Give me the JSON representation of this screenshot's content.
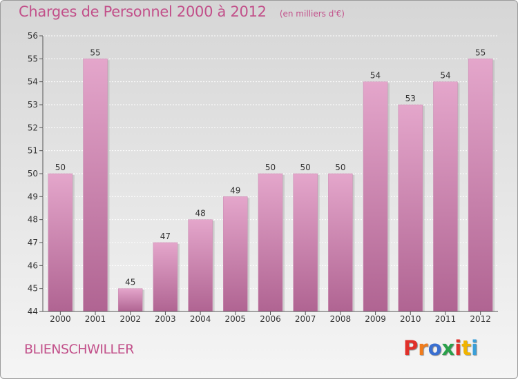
{
  "header": {
    "title": "Charges de Personnel 2000 à 2012",
    "unit": "(en milliers d'€)"
  },
  "footer": {
    "commune": "BLIENSCHWILLER",
    "logo": "Proxiti"
  },
  "colors": {
    "accent": "#c2508a",
    "bar_top": "#e4a6cb",
    "bar_bottom": "#b06492",
    "logo_letters": [
      "#e0302a",
      "#f07c1c",
      "#3a6fd0",
      "#2aa04a",
      "#e0302a",
      "#f0b400",
      "#3a9fd8"
    ]
  },
  "chart_data": {
    "type": "bar",
    "title": "Charges de Personnel 2000 à 2012",
    "subtitle": "(en milliers d'€)",
    "categories": [
      "2000",
      "2001",
      "2002",
      "2003",
      "2004",
      "2005",
      "2006",
      "2007",
      "2008",
      "2009",
      "2010",
      "2011",
      "2012"
    ],
    "values": [
      50,
      55,
      45,
      47,
      48,
      49,
      50,
      50,
      50,
      54,
      53,
      54,
      55
    ],
    "ylim": [
      44,
      56
    ],
    "yticks": [
      44,
      45,
      46,
      47,
      48,
      49,
      50,
      51,
      52,
      53,
      54,
      55,
      56
    ],
    "grid": true,
    "data_labels": true
  }
}
